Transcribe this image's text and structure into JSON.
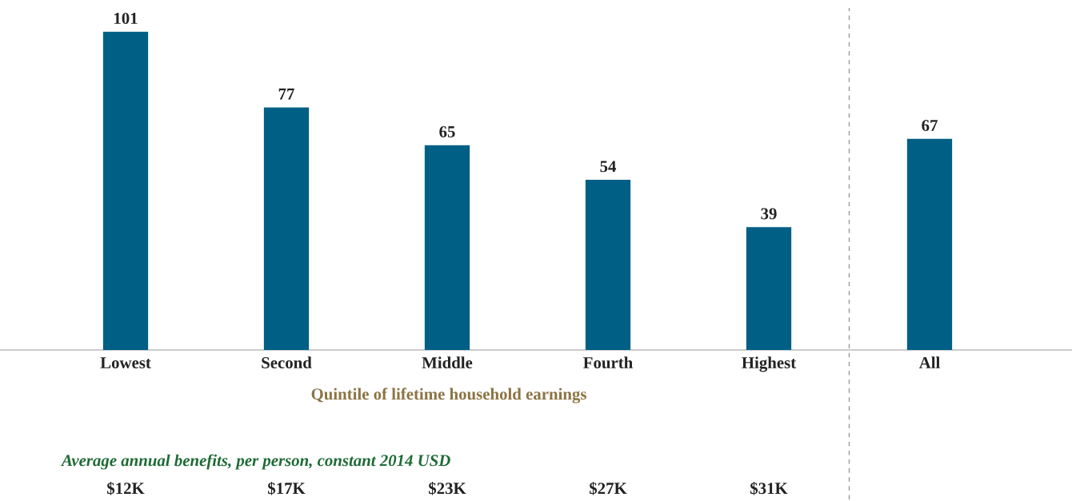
{
  "chart_data": {
    "type": "bar",
    "categories": [
      "Lowest",
      "Second",
      "Middle",
      "Fourth",
      "Highest",
      "All"
    ],
    "values": [
      101,
      77,
      65,
      54,
      39,
      67
    ],
    "color": "#005f85",
    "data_labels": true,
    "xlabel": "Quintile of lifetime household earnings",
    "tick_labels": "x",
    "annotations": [
      "Average annual benefits, per person, constant 2014 USD",
      "$12K",
      "$17K",
      "$23K",
      "$27K",
      "$31K"
    ]
  }
}
